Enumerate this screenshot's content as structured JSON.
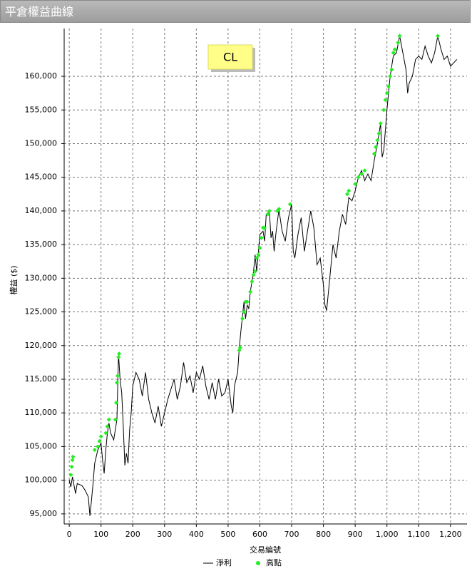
{
  "chart_data": {
    "type": "line",
    "title": "平倉權益曲線",
    "annotation": "CL",
    "xlabel": "交易編號",
    "ylabel": "權益 ($)",
    "xlim": [
      -16,
      1252
    ],
    "ylim": [
      93500,
      167100
    ],
    "xticks": [
      0,
      100,
      200,
      300,
      400,
      500,
      600,
      700,
      800,
      900,
      {
        "value": 1000,
        "label": "1,000"
      },
      {
        "value": 1100,
        "label": "1,100"
      },
      {
        "value": 1200,
        "label": "1,200"
      }
    ],
    "yticks": [
      {
        "value": 95000,
        "label": "95,000"
      },
      {
        "value": 100000,
        "label": "100,000"
      },
      {
        "value": 105000,
        "label": "105,000"
      },
      {
        "value": 110000,
        "label": "110,000"
      },
      {
        "value": 115000,
        "label": "115,000"
      },
      {
        "value": 120000,
        "label": "120,000"
      },
      {
        "value": 125000,
        "label": "125,000"
      },
      {
        "value": 130000,
        "label": "130,000"
      },
      {
        "value": 135000,
        "label": "135,000"
      },
      {
        "value": 140000,
        "label": "140,000"
      },
      {
        "value": 145000,
        "label": "145,000"
      },
      {
        "value": 150000,
        "label": "150,000"
      },
      {
        "value": 155000,
        "label": "155,000"
      },
      {
        "value": 160000,
        "label": "160,000"
      }
    ],
    "grid": true,
    "series": [
      {
        "name": "淨利",
        "color": "#000000",
        "mode": "line",
        "x": [
          0,
          5,
          10,
          20,
          25,
          40,
          50,
          60,
          65,
          70,
          75,
          80,
          90,
          100,
          105,
          110,
          115,
          120,
          125,
          130,
          140,
          150,
          155,
          160,
          165,
          170,
          175,
          180,
          185,
          190,
          195,
          200,
          210,
          220,
          230,
          240,
          250,
          260,
          270,
          280,
          290,
          300,
          310,
          320,
          330,
          340,
          350,
          360,
          370,
          380,
          390,
          400,
          410,
          420,
          430,
          440,
          450,
          460,
          470,
          480,
          490,
          500,
          510,
          515,
          520,
          530,
          535,
          540,
          550,
          555,
          560,
          565,
          570,
          580,
          585,
          590,
          600,
          610,
          615,
          620,
          630,
          635,
          640,
          645,
          650,
          660,
          670,
          680,
          690,
          700,
          705,
          710,
          720,
          730,
          740,
          750,
          760,
          770,
          780,
          790,
          800,
          805,
          810,
          820,
          830,
          840,
          850,
          860,
          870,
          880,
          890,
          900,
          910,
          920,
          930,
          940,
          950,
          960,
          970,
          980,
          985,
          990,
          1000,
          1010,
          1020,
          1030,
          1040,
          1050,
          1060,
          1065,
          1070,
          1080,
          1090,
          1100,
          1110,
          1120,
          1130,
          1140,
          1150,
          1160,
          1170,
          1180,
          1190,
          1200,
          1210,
          1220
        ],
        "values": [
          100000,
          99000,
          100500,
          98000,
          99500,
          99200,
          98500,
          97500,
          94700,
          97000,
          99500,
          102500,
          104500,
          105500,
          103000,
          101000,
          104500,
          107000,
          108500,
          107000,
          106000,
          109000,
          118800,
          115000,
          113000,
          108000,
          102200,
          104000,
          102500,
          107500,
          110000,
          114000,
          116000,
          115000,
          112500,
          116000,
          112000,
          110000,
          108500,
          111000,
          108000,
          110000,
          112000,
          113500,
          115000,
          112000,
          114000,
          117500,
          114500,
          115500,
          113000,
          116000,
          115000,
          117000,
          114000,
          112000,
          114500,
          112000,
          115000,
          112500,
          113000,
          115000,
          111000,
          110000,
          114000,
          116000,
          119500,
          122000,
          126500,
          124000,
          126000,
          125500,
          128000,
          131000,
          133500,
          131000,
          136500,
          137000,
          135500,
          139500,
          140000,
          136000,
          137000,
          134000,
          136500,
          140200,
          137000,
          135500,
          139000,
          141000,
          134000,
          133000,
          136500,
          139000,
          134000,
          137000,
          140000,
          137500,
          132000,
          133000,
          129000,
          126000,
          125200,
          130000,
          135000,
          133000,
          137000,
          139500,
          138000,
          142000,
          141500,
          143000,
          145000,
          146000,
          144500,
          145500,
          144500,
          147500,
          150000,
          153000,
          148000,
          149000,
          155000,
          160000,
          163000,
          163500,
          166000,
          163500,
          161000,
          157500,
          159000,
          160000,
          162500,
          163000,
          162500,
          164500,
          163000,
          162000,
          163500,
          166000,
          164000,
          162500,
          163000,
          161500,
          162000,
          162500
        ]
      },
      {
        "name": "高點",
        "color": "#22ee22",
        "mode": "markers",
        "x": [
          5,
          8,
          10,
          12,
          80,
          90,
          95,
          100,
          115,
          120,
          125,
          145,
          148,
          150,
          152,
          155,
          157,
          535,
          538,
          545,
          550,
          555,
          560,
          570,
          575,
          580,
          585,
          590,
          595,
          600,
          605,
          610,
          615,
          625,
          630,
          655,
          660,
          695,
          875,
          880,
          900,
          910,
          920,
          930,
          960,
          965,
          970,
          975,
          980,
          990,
          995,
          1000,
          1005,
          1010,
          1015,
          1020,
          1025,
          1035,
          1040,
          1160
        ],
        "values": [
          100800,
          102000,
          103000,
          103500,
          104500,
          105000,
          105800,
          106500,
          107000,
          108000,
          109000,
          109000,
          111500,
          114500,
          115500,
          118300,
          118800,
          119300,
          119700,
          124000,
          125000,
          126500,
          126500,
          128000,
          129500,
          130500,
          131000,
          133000,
          133500,
          134500,
          136000,
          137500,
          137500,
          139500,
          140000,
          140000,
          140300,
          141000,
          142500,
          143000,
          144000,
          145000,
          145500,
          146000,
          148500,
          149500,
          150500,
          151500,
          153000,
          155000,
          156500,
          157500,
          158500,
          160000,
          161000,
          163500,
          164000,
          165000,
          166000,
          166000
        ]
      }
    ]
  }
}
